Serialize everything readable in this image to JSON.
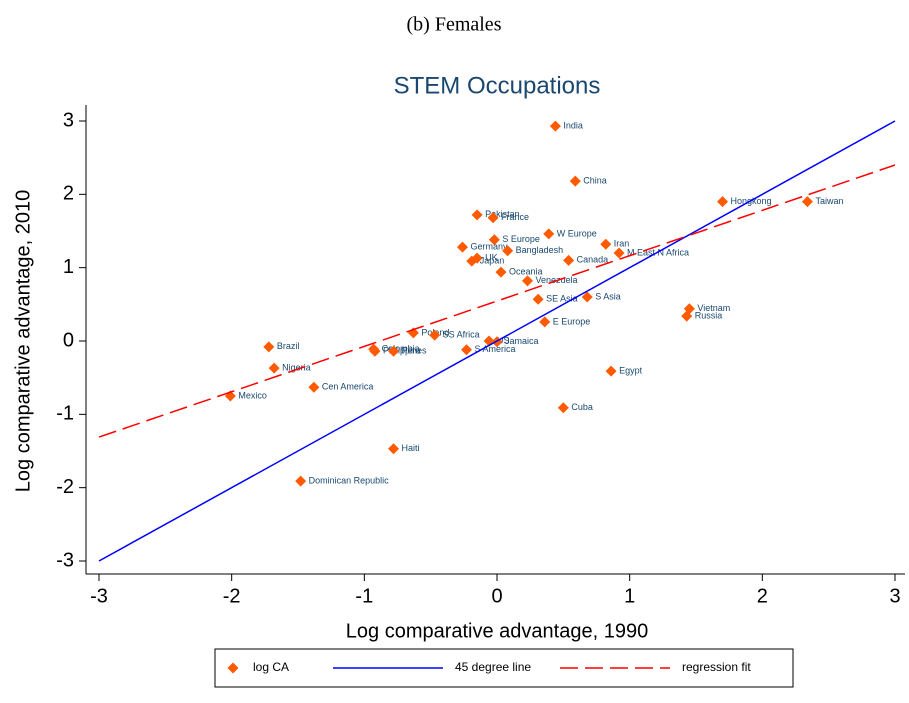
{
  "chart_data": {
    "type": "scatter",
    "super_title": "(b) Females",
    "title": "STEM Occupations",
    "x_label": "Log comparative advantage, 1990",
    "y_label": "Log comparative advantage, 2010",
    "xlim": [
      -3,
      3
    ],
    "ylim": [
      -3,
      3
    ],
    "xticks": [
      -3,
      -2,
      -1,
      0,
      1,
      2,
      3
    ],
    "yticks": [
      -3,
      -2,
      -1,
      0,
      1,
      2,
      3
    ],
    "series": [
      {
        "name": "log CA",
        "type": "scatter",
        "color": "#ff5a00",
        "label_color": "#1a476f",
        "point_labels": [
          "India",
          "China",
          "Hongkong",
          "Taiwan",
          "Pakistan",
          "France",
          "W Europe",
          "S Europe",
          "Iran",
          "Germany",
          "Bangladesh",
          "M East N Africa",
          "UK",
          "Japan",
          "Canada",
          "Oceania",
          "Venezuela",
          "SE Asia",
          "S Asia",
          "Vietnam",
          "Russia",
          "E Europe",
          "Poland",
          "SS Africa",
          "US",
          "Jamaica",
          "Brazil",
          "Colombia",
          "Philippines",
          "Peru",
          "S America",
          "Nigeria",
          "Egypt",
          "Cen America",
          "Mexico",
          "Cuba",
          "Haiti",
          "Dominican Republic"
        ],
        "x": [
          0.44,
          0.59,
          1.7,
          2.34,
          -0.15,
          -0.03,
          0.39,
          -0.02,
          0.82,
          -0.26,
          0.08,
          0.92,
          -0.15,
          -0.19,
          0.54,
          0.03,
          0.23,
          0.31,
          0.68,
          1.45,
          1.43,
          0.36,
          -0.63,
          -0.47,
          -0.06,
          0.0,
          -1.72,
          -0.93,
          -0.92,
          -0.78,
          -0.23,
          -1.68,
          0.86,
          -1.38,
          -2.01,
          0.5,
          -0.78,
          -1.48
        ],
        "values": [
          2.93,
          2.18,
          1.9,
          1.9,
          1.72,
          1.68,
          1.46,
          1.38,
          1.32,
          1.28,
          1.23,
          1.2,
          1.13,
          1.09,
          1.1,
          0.94,
          0.82,
          0.57,
          0.6,
          0.44,
          0.34,
          0.26,
          0.11,
          0.08,
          0.0,
          -0.01,
          -0.08,
          -0.11,
          -0.14,
          -0.14,
          -0.12,
          -0.37,
          -0.41,
          -0.63,
          -0.75,
          -0.91,
          -1.47,
          -1.91
        ]
      },
      {
        "name": "45 degree line",
        "type": "line",
        "color": "#0000ff",
        "dash": false,
        "x": [
          -3,
          3
        ],
        "values": [
          -3,
          3
        ]
      },
      {
        "name": "regression fit",
        "type": "line",
        "color": "#ff0000",
        "dash": true,
        "x": [
          -3,
          3
        ],
        "values": [
          -1.31,
          2.4
        ]
      }
    ]
  }
}
